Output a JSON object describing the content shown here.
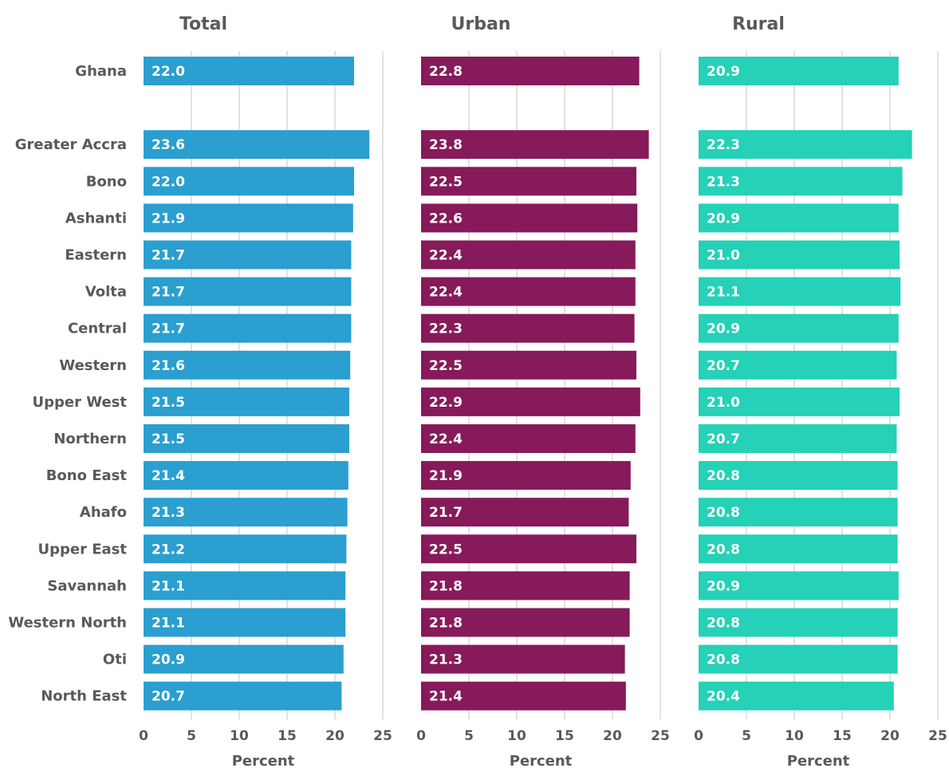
{
  "chart_data": {
    "type": "bar",
    "orientation": "horizontal",
    "categories": [
      "Ghana",
      "",
      "Greater Accra",
      "Bono",
      "Ashanti",
      "Eastern",
      "Volta",
      "Central",
      "Western",
      "Upper West",
      "Northern",
      "Bono East",
      "Ahafo",
      "Upper East",
      "Savannah",
      "Western North",
      "Oti",
      "North East"
    ],
    "xlim": [
      0,
      25
    ],
    "xticks": [
      0,
      5,
      10,
      15,
      20,
      25
    ],
    "xlabel": "Percent",
    "grid": true,
    "panels": [
      {
        "title": "Total",
        "color": "#2a9fd0",
        "values": [
          22.0,
          null,
          23.6,
          22.0,
          21.9,
          21.7,
          21.7,
          21.7,
          21.6,
          21.5,
          21.5,
          21.4,
          21.3,
          21.2,
          21.1,
          21.1,
          20.9,
          20.7
        ]
      },
      {
        "title": "Urban",
        "color": "#861a5a",
        "values": [
          22.8,
          null,
          23.8,
          22.5,
          22.6,
          22.4,
          22.4,
          22.3,
          22.5,
          22.9,
          22.4,
          21.9,
          21.7,
          22.5,
          21.8,
          21.8,
          21.3,
          21.4
        ]
      },
      {
        "title": "Rural",
        "color": "#25d1b7",
        "values": [
          20.9,
          null,
          22.3,
          21.3,
          20.9,
          21.0,
          21.1,
          20.9,
          20.7,
          21.0,
          20.7,
          20.8,
          20.8,
          20.8,
          20.9,
          20.8,
          20.8,
          20.4
        ]
      }
    ]
  }
}
